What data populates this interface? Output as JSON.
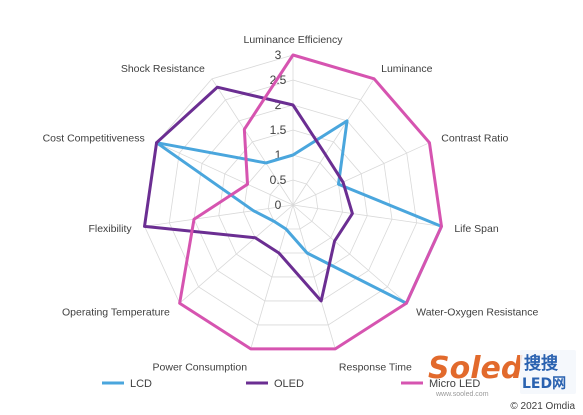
{
  "chart_data": {
    "type": "radar",
    "title": "",
    "categories": [
      "Luminance Efficiency",
      "Luminance",
      "Contrast Ratio",
      "Life Span",
      "Water-Oxygen Resistance",
      "Response Time",
      "Power Consumption",
      "Operating Temperature",
      "Flexibility",
      "Cost Competitiveness",
      "Shock Resistance"
    ],
    "rlim": [
      0,
      3
    ],
    "ticks": [
      "0",
      "0.5",
      "1",
      "1.5",
      "2",
      "2.5",
      "3"
    ],
    "grid": true,
    "legend_position": "bottom",
    "series": [
      {
        "name": "LCD",
        "color": "#4aa6dd",
        "values": [
          1.0,
          2.0,
          1.0,
          3.0,
          3.0,
          1.0,
          0.5,
          0.5,
          0.8,
          3.0,
          1.0
        ]
      },
      {
        "name": "OLED",
        "color": "#6b2e92",
        "values": [
          2.0,
          1.2,
          1.1,
          1.2,
          1.1,
          2.0,
          1.0,
          1.0,
          3.0,
          3.0,
          2.8
        ]
      },
      {
        "name": "Micro LED",
        "color": "#d654b0",
        "values": [
          3.0,
          3.0,
          3.0,
          3.0,
          3.0,
          3.0,
          3.0,
          3.0,
          2.0,
          1.0,
          1.8
        ]
      }
    ]
  },
  "watermark": {
    "brand": "Soled",
    "site": "www.sooled.com",
    "badge_top": "搜搜",
    "badge_bottom": "LED网"
  },
  "copyright": "© 2021 Omdia"
}
